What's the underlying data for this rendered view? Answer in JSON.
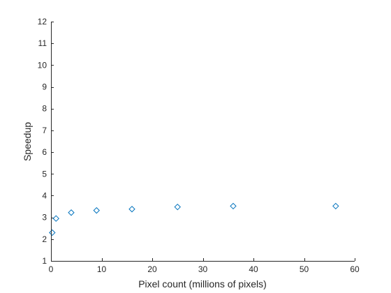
{
  "chart_data": {
    "type": "scatter",
    "title": "",
    "xlabel": "Pixel count (millions of pixels)",
    "ylabel": "Speedup",
    "xlim": [
      0,
      60
    ],
    "ylim": [
      1,
      12
    ],
    "xticks": [
      0,
      10,
      20,
      30,
      40,
      50,
      60
    ],
    "yticks": [
      1,
      2,
      3,
      4,
      5,
      6,
      7,
      8,
      9,
      10,
      11,
      12
    ],
    "grid": false,
    "legend": false,
    "marker": "diamond",
    "marker_color": "#0072BD",
    "axis_color": "#262626",
    "series": [
      {
        "points": [
          {
            "x": 0.25,
            "y": 2.3
          },
          {
            "x": 1.0,
            "y": 2.95
          },
          {
            "x": 4.0,
            "y": 3.22
          },
          {
            "x": 9.0,
            "y": 3.32
          },
          {
            "x": 16.0,
            "y": 3.38
          },
          {
            "x": 25.0,
            "y": 3.48
          },
          {
            "x": 36.0,
            "y": 3.52
          },
          {
            "x": 56.25,
            "y": 3.52
          }
        ]
      }
    ]
  }
}
